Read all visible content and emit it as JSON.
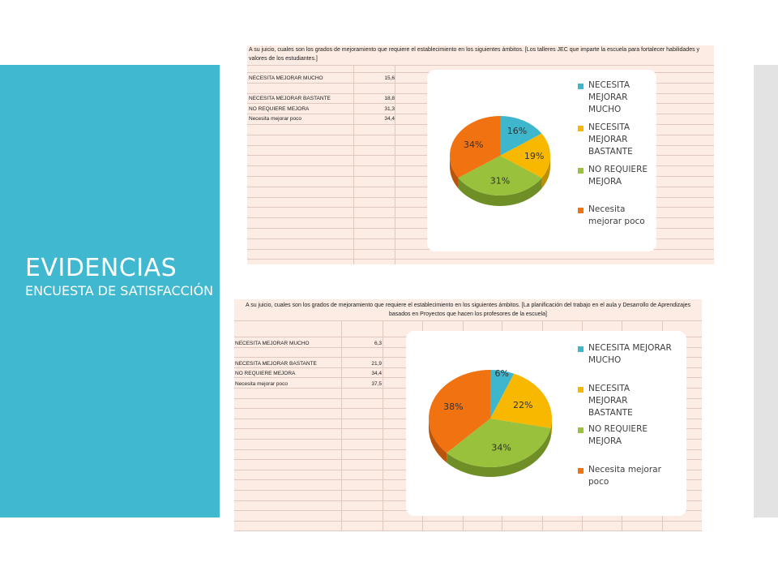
{
  "slide": {
    "title": "EVIDENCIAS",
    "subtitle": "ENCUESTA DE SATISFACCIÓN"
  },
  "colors": {
    "band": "#40b8d0",
    "sheet": "#fcece4",
    "slices": [
      "#3eb7cc",
      "#f9b800",
      "#99c13c",
      "#f07211"
    ]
  },
  "sheets": [
    {
      "question": "A su juicio, cuales son los grados de mejoramiento que requiere el establecimiento en los siguientes ámbitos. [Los talleres JEC que imparte la escuela para fortalecer habilidades y valores de los estudiantes.]",
      "rows": [
        {
          "label": "NECESITA MEJORAR MUCHO",
          "value": "15,6"
        },
        {
          "label": "NECESITA MEJORAR BASTANTE",
          "value": "18,8"
        },
        {
          "label": "NO REQUIERE MEJORA",
          "value": "31,3"
        },
        {
          "label": "Necesita mejorar poco",
          "value": "34,4"
        }
      ],
      "legend": [
        "NECESITA MEJORAR MUCHO",
        "NECESITA MEJORAR BASTANTE",
        "NO REQUIERE MEJORA",
        "Necesita mejorar poco"
      ]
    },
    {
      "question": "A su juicio, cuales son los grados de mejoramiento que requiere el establecimiento en los siguientes ámbitos. [La planificación del trabajo en el aula y Desarrollo de Aprendizajes basados en Proyectos que hacen los profesores de la escuela]",
      "rows": [
        {
          "label": "NECESITA MEJORAR MUCHO",
          "value": "6,3"
        },
        {
          "label": "NECESITA MEJORAR BASTANTE",
          "value": "21,9"
        },
        {
          "label": "NO REQUIERE MEJORA",
          "value": "34,4"
        },
        {
          "label": "Necesita mejorar poco",
          "value": "37,5"
        }
      ],
      "legend": [
        "NECESITA MEJORAR MUCHO",
        "NECESITA MEJORAR BASTANTE",
        "NO REQUIERE MEJORA",
        "Necesita mejorar poco"
      ]
    }
  ],
  "chart_data": [
    {
      "type": "pie",
      "categories": [
        "NECESITA MEJORAR MUCHO",
        "NECESITA MEJORAR BASTANTE",
        "NO REQUIERE MEJORA",
        "Necesita mejorar poco"
      ],
      "values": [
        15.6,
        18.8,
        31.3,
        34.4
      ],
      "data_labels": [
        "16%",
        "19%",
        "31%",
        "34%"
      ],
      "legend": "right"
    },
    {
      "type": "pie",
      "categories": [
        "NECESITA MEJORAR MUCHO",
        "NECESITA MEJORAR BASTANTE",
        "NO REQUIERE MEJORA",
        "Necesita mejorar poco"
      ],
      "values": [
        6.3,
        21.9,
        34.4,
        37.5
      ],
      "data_labels": [
        "6%",
        "22%",
        "34%",
        "38%"
      ],
      "legend": "right"
    }
  ]
}
